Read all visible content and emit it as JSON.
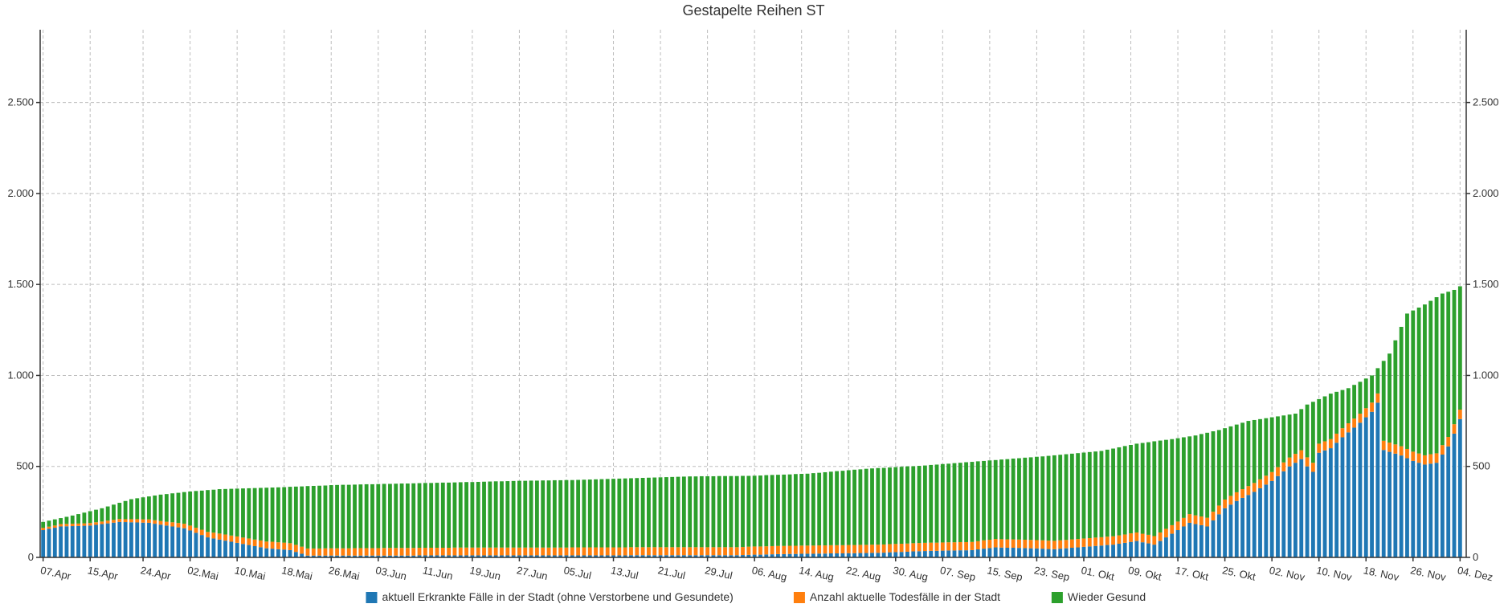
{
  "chart_data": {
    "type": "bar",
    "stacked": true,
    "title": "Gestapelte Reihen ST",
    "xlabel": "",
    "ylabel": "",
    "ylim": [
      0,
      2900
    ],
    "y_ticks": [
      0,
      500,
      1000,
      1500,
      2000,
      2500
    ],
    "y_tick_labels": [
      "0",
      "500",
      "1.000",
      "1.500",
      "2.000",
      "2.500"
    ],
    "y_axes": [
      "left",
      "right"
    ],
    "grid": true,
    "legend_position": "bottom",
    "start_date": "2020-04-07",
    "n_days": 242,
    "x_tick_labels": [
      "07.Apr",
      "15.Apr",
      "24.Apr",
      "02.Mai",
      "10.Mai",
      "18.Mai",
      "26.Mai",
      "03.Jun",
      "11.Jun",
      "19.Jun",
      "27.Jun",
      "05.Jul",
      "13.Jul",
      "21.Jul",
      "29.Jul",
      "06. Aug",
      "14. Aug",
      "22. Aug",
      "30. Aug",
      "07. Sep",
      "15. Sep",
      "23. Sep",
      "01. Okt",
      "09. Okt",
      "17. Okt",
      "25. Okt",
      "02. Nov",
      "10. Nov",
      "18. Nov",
      "26. Nov",
      "04. Dez"
    ],
    "x_tick_dates": [
      "2020-04-07",
      "2020-04-15",
      "2020-04-24",
      "2020-05-02",
      "2020-05-10",
      "2020-05-18",
      "2020-05-26",
      "2020-06-03",
      "2020-06-11",
      "2020-06-19",
      "2020-06-27",
      "2020-07-05",
      "2020-07-13",
      "2020-07-21",
      "2020-07-29",
      "2020-08-06",
      "2020-08-14",
      "2020-08-22",
      "2020-08-30",
      "2020-09-07",
      "2020-09-15",
      "2020-09-23",
      "2020-10-01",
      "2020-10-09",
      "2020-10-17",
      "2020-10-25",
      "2020-11-02",
      "2020-11-10",
      "2020-11-18",
      "2020-11-26",
      "2020-12-04"
    ],
    "series": [
      {
        "name": "aktuell Erkrankte Fälle in der Stadt (ohne Verstorbene und Gesundete)",
        "color": "#1f77b4",
        "keyframes": [
          [
            0,
            150
          ],
          [
            3,
            170
          ],
          [
            8,
            175
          ],
          [
            13,
            195
          ],
          [
            18,
            190
          ],
          [
            22,
            170
          ],
          [
            24,
            160
          ],
          [
            28,
            110
          ],
          [
            33,
            80
          ],
          [
            38,
            50
          ],
          [
            42,
            40
          ],
          [
            45,
            10
          ],
          [
            118,
            12
          ],
          [
            125,
            18
          ],
          [
            135,
            22
          ],
          [
            142,
            25
          ],
          [
            150,
            35
          ],
          [
            158,
            40
          ],
          [
            162,
            55
          ],
          [
            168,
            50
          ],
          [
            172,
            45
          ],
          [
            176,
            55
          ],
          [
            182,
            70
          ],
          [
            186,
            90
          ],
          [
            189,
            70
          ],
          [
            192,
            130
          ],
          [
            195,
            190
          ],
          [
            198,
            170
          ],
          [
            201,
            270
          ],
          [
            203,
            310
          ],
          [
            206,
            360
          ],
          [
            209,
            420
          ],
          [
            212,
            500
          ],
          [
            214,
            540
          ],
          [
            215,
            500
          ],
          [
            216,
            470
          ],
          [
            217,
            575
          ],
          [
            219,
            600
          ],
          [
            221,
            660
          ],
          [
            224,
            740
          ],
          [
            226,
            800
          ],
          [
            227,
            850
          ],
          [
            228,
            590
          ],
          [
            231,
            560
          ],
          [
            233,
            530
          ],
          [
            235,
            510
          ],
          [
            237,
            520
          ],
          [
            239,
            610
          ],
          [
            240,
            680
          ],
          [
            241,
            760
          ]
        ]
      },
      {
        "name": "Anzahl aktuelle Todesfälle in der Stadt",
        "color": "#ff7f0e",
        "keyframes": [
          [
            0,
            12
          ],
          [
            10,
            14
          ],
          [
            20,
            20
          ],
          [
            30,
            33
          ],
          [
            40,
            38
          ],
          [
            60,
            42
          ],
          [
            100,
            44
          ],
          [
            140,
            45
          ],
          [
            180,
            46
          ],
          [
            200,
            48
          ],
          [
            220,
            50
          ],
          [
            241,
            52
          ]
        ]
      },
      {
        "name": "Wieder Gesund",
        "color": "#2ca02c",
        "total_keyframes": [
          [
            0,
            195
          ],
          [
            5,
            230
          ],
          [
            10,
            270
          ],
          [
            15,
            320
          ],
          [
            20,
            345
          ],
          [
            25,
            362
          ],
          [
            30,
            375
          ],
          [
            40,
            385
          ],
          [
            50,
            398
          ],
          [
            60,
            405
          ],
          [
            70,
            412
          ],
          [
            80,
            420
          ],
          [
            90,
            425
          ],
          [
            100,
            435
          ],
          [
            110,
            445
          ],
          [
            120,
            448
          ],
          [
            130,
            460
          ],
          [
            140,
            487
          ],
          [
            150,
            505
          ],
          [
            160,
            530
          ],
          [
            170,
            555
          ],
          [
            180,
            585
          ],
          [
            186,
            625
          ],
          [
            192,
            650
          ],
          [
            196,
            670
          ],
          [
            200,
            700
          ],
          [
            205,
            750
          ],
          [
            210,
            775
          ],
          [
            213,
            790
          ],
          [
            215,
            840
          ],
          [
            219,
            900
          ],
          [
            222,
            930
          ],
          [
            226,
            1000
          ],
          [
            229,
            1120
          ],
          [
            232,
            1340
          ],
          [
            235,
            1390
          ],
          [
            238,
            1450
          ],
          [
            240,
            1470
          ],
          [
            241,
            1490
          ]
        ]
      }
    ]
  },
  "legend": {
    "items": [
      {
        "label": "aktuell Erkrankte Fälle in der Stadt (ohne Verstorbene und Gesundete)",
        "color": "#1f77b4"
      },
      {
        "label": "Anzahl aktuelle Todesfälle in der Stadt",
        "color": "#ff7f0e"
      },
      {
        "label": "Wieder Gesund",
        "color": "#2ca02c"
      }
    ]
  }
}
